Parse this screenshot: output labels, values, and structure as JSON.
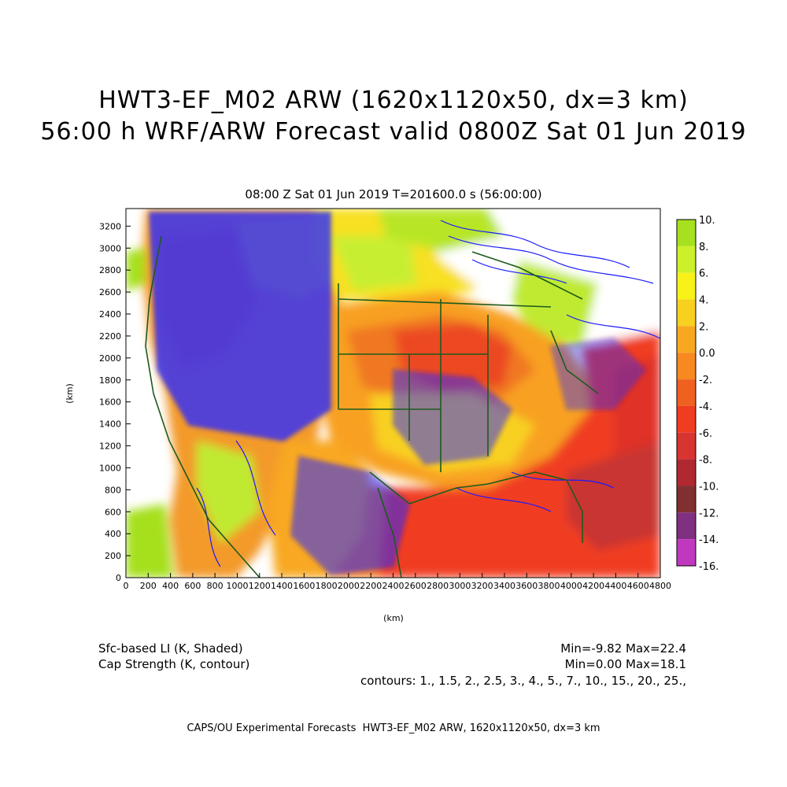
{
  "title_line1": "HWT3-EF_M02 ARW (1620x1120x50, dx=3 km)",
  "title_line2": "56:00 h WRF/ARW Forecast valid 0800Z Sat 01 Jun 2019",
  "subtitle": "08:00 Z Sat 01 Jun 2019    T=201600.0 s (56:00:00)",
  "axes": {
    "x_label": "(km)",
    "y_label": "(km)",
    "x_ticks": [
      "0",
      "200",
      "400",
      "600",
      "800",
      "1000",
      "1200",
      "1400",
      "1600",
      "1800",
      "2000",
      "2200",
      "2400",
      "2600",
      "2800",
      "3000",
      "3200",
      "3400",
      "3600",
      "3800",
      "4000",
      "4200",
      "4400",
      "4600",
      "4800"
    ],
    "y_ticks": [
      "0",
      "200",
      "400",
      "600",
      "800",
      "1000",
      "1200",
      "1400",
      "1600",
      "1800",
      "2000",
      "2200",
      "2400",
      "2600",
      "2800",
      "3000",
      "3200"
    ]
  },
  "colorbar": {
    "labels": [
      "10.",
      "8.",
      "6.",
      "4.",
      "2.",
      "0.0",
      "-2.",
      "-4.",
      "-6.",
      "-8.",
      "-10.",
      "-12.",
      "-14.",
      "-16."
    ],
    "colors": [
      "#a6e01e",
      "#ccf02a",
      "#f8f218",
      "#f8d020",
      "#f8a820",
      "#f88820",
      "#f06020",
      "#f03c20",
      "#d83430",
      "#b02830",
      "#803030",
      "#803080",
      "#c038c0",
      "#e040e0"
    ]
  },
  "contour_color": "#1a1aff",
  "coast_color": "#1d5a1d",
  "field_shaded": "Sfc-based LI (K, Shaded)",
  "field_contour": "Cap Strength (K, contour)",
  "min_max_shaded": "Min=-9.82 Max=22.4",
  "min_max_contour": "Min=0.00 Max=18.1",
  "contours_text": "contours: 1., 1.5, 2., 2.5, 3., 4., 5., 7., 10., 15., 20., 25.,",
  "credit": "CAPS/OU Experimental Forecasts  HWT3-EF_M02 ARW, 1620x1120x50, dx=3 km"
}
